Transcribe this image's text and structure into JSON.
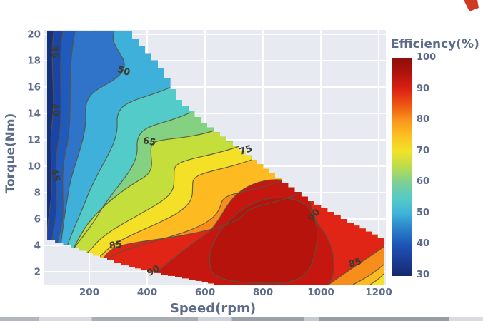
{
  "page": {
    "background": "#ffffff"
  },
  "chart_data": {
    "type": "heatmap",
    "subtype": "filled-contour-motor-efficiency-map",
    "title": "Efficiency(%)",
    "xlabel": "Speed(rpm)",
    "ylabel": "Torque(Nm)",
    "x_ticks": [
      "200",
      "400",
      "600",
      "800",
      "1000",
      "1200"
    ],
    "y_ticks": [
      "20",
      "18",
      "16",
      "14",
      "12",
      "10",
      "8",
      "6",
      "4",
      "2"
    ],
    "x_range_rpm": [
      50,
      1220
    ],
    "y_range_nm": [
      1,
      20
    ],
    "grid": "white gridlines on light gray-blue panel",
    "colorbar": {
      "title": "Efficiency(%)",
      "min": 30,
      "max": 100,
      "tick_labels": [
        "100",
        "90",
        "80",
        "70",
        "60",
        "50",
        "40",
        "30"
      ]
    },
    "colorbar_stops": [
      {
        "v": 30,
        "c": "#16296e"
      },
      {
        "v": 35,
        "c": "#1a3c94"
      },
      {
        "v": 40,
        "c": "#1e55b8"
      },
      {
        "v": 45,
        "c": "#2a80c8"
      },
      {
        "v": 50,
        "c": "#3eb3d8"
      },
      {
        "v": 55,
        "c": "#55cbc6"
      },
      {
        "v": 60,
        "c": "#7ed095"
      },
      {
        "v": 65,
        "c": "#badc4c"
      },
      {
        "v": 70,
        "c": "#f2e228"
      },
      {
        "v": 75,
        "c": "#fdc022"
      },
      {
        "v": 80,
        "c": "#f8951c"
      },
      {
        "v": 85,
        "c": "#ee5412"
      },
      {
        "v": 90,
        "c": "#db2013"
      },
      {
        "v": 95,
        "c": "#b0130d"
      },
      {
        "v": 100,
        "c": "#8c0f0a"
      }
    ],
    "contour_levels": [
      35,
      40,
      45,
      50,
      55,
      60,
      65,
      70,
      75,
      80,
      85,
      90
    ],
    "contour_labels": [
      "35",
      "40",
      "45",
      "50",
      "65",
      "75",
      "85",
      "90",
      "90",
      "85"
    ],
    "band_colors": [
      "#15317e",
      "#1a44a5",
      "#1f5abc",
      "#2f74c8",
      "#3fb0da",
      "#53cbc9",
      "#84d281",
      "#c4df3c",
      "#f4e127",
      "#fdbb21",
      "#f78d1b",
      "#e02517",
      "#c5170f"
    ],
    "inner_core_color": "#b5130b",
    "colors": {
      "panel": "#e8eaf1",
      "axis_text": "#5d6c8b",
      "contour_line": "#55543f",
      "gridline": "#ffffff"
    },
    "peak_efficiency_region": {
      "speed_rpm": [
        550,
        1000
      ],
      "torque_nm": [
        1.5,
        7
      ],
      "efficiency_pct": ">90"
    },
    "efficiency_grid": {
      "speed_rpm": [
        100,
        200,
        300,
        400,
        500,
        600,
        700,
        800,
        900,
        1000,
        1100,
        1200
      ],
      "torque_nm": [
        20,
        18,
        16,
        14,
        12,
        10,
        8,
        6,
        4,
        2
      ],
      "values": [
        [
          32,
          48,
          55,
          null,
          null,
          null,
          null,
          null,
          null,
          null,
          null,
          null
        ],
        [
          33,
          50,
          55,
          58,
          null,
          null,
          null,
          null,
          null,
          null,
          null,
          null
        ],
        [
          35,
          52,
          56,
          60,
          64,
          null,
          null,
          null,
          null,
          null,
          null,
          null
        ],
        [
          36,
          55,
          60,
          64,
          68,
          null,
          null,
          null,
          null,
          null,
          null,
          null
        ],
        [
          38,
          60,
          65,
          68,
          72,
          75,
          null,
          null,
          null,
          null,
          null,
          null
        ],
        [
          40,
          63,
          70,
          74,
          77,
          79,
          80,
          81,
          null,
          null,
          null,
          null
        ],
        [
          42,
          68,
          76,
          80,
          82,
          84,
          85,
          86,
          86,
          null,
          null,
          null
        ],
        [
          48,
          75,
          82,
          85,
          86,
          88,
          89,
          90,
          90,
          89,
          null,
          null
        ],
        [
          null,
          82,
          86,
          87,
          88,
          90,
          91,
          92,
          91,
          90,
          88,
          85
        ],
        [
          null,
          null,
          null,
          null,
          91,
          92,
          92,
          92,
          91,
          90,
          87,
          81
        ]
      ]
    }
  }
}
